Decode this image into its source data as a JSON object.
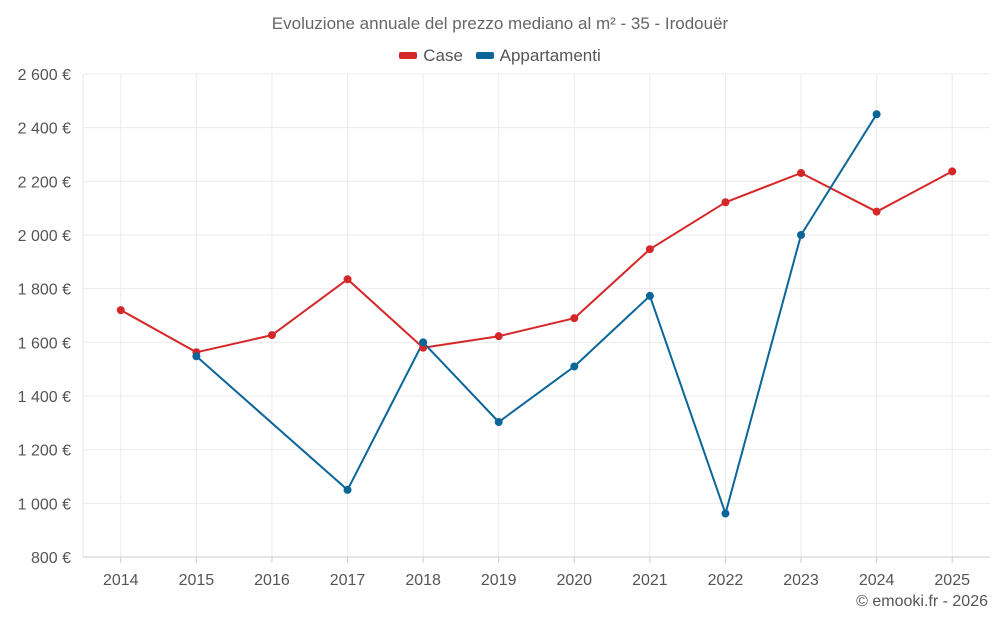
{
  "chart_data": {
    "type": "line",
    "title": "Evoluzione annuale del prezzo mediano al m² - 35 - Irodouër",
    "categories": [
      "2014",
      "2015",
      "2016",
      "2017",
      "2018",
      "2019",
      "2020",
      "2021",
      "2022",
      "2023",
      "2024",
      "2025"
    ],
    "series": [
      {
        "name": "Case",
        "color": "#d62728",
        "values": [
          1720,
          1563,
          1627,
          1835,
          1580,
          1623,
          1690,
          1947,
          2122,
          2231,
          2087,
          2237
        ]
      },
      {
        "name": "Appartamenti",
        "color": "#0a6699",
        "values": [
          null,
          1548,
          null,
          1050,
          1600,
          1303,
          1510,
          1773,
          962,
          2000,
          2450,
          null
        ]
      }
    ],
    "ylim": [
      800,
      2600
    ],
    "yticks": [
      800,
      1000,
      1200,
      1400,
      1600,
      1800,
      2000,
      2200,
      2400,
      2600
    ],
    "ytick_labels": [
      "800 €",
      "1 000 €",
      "1 200 €",
      "1 400 €",
      "1 600 €",
      "1 800 €",
      "2 000 €",
      "2 200 €",
      "2 400 €",
      "2 600 €"
    ],
    "xlabel": "",
    "ylabel": "",
    "grid": true,
    "legend_position": "top-center"
  },
  "credit": "© emooki.fr - 2026"
}
